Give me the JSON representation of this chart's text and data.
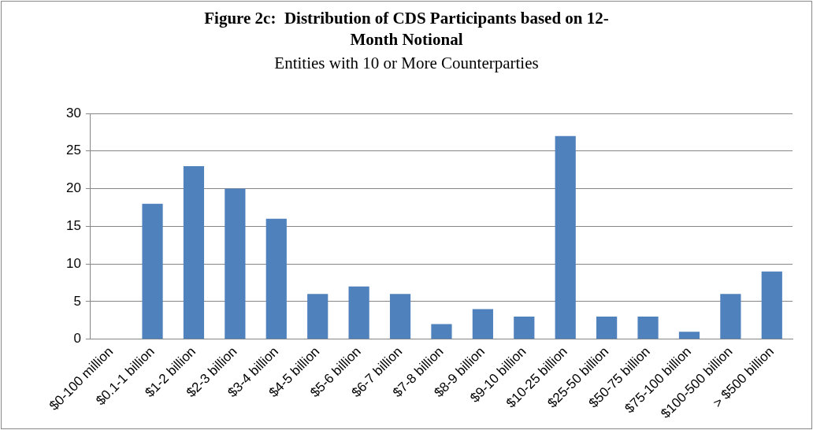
{
  "chart_data": {
    "type": "bar",
    "title": "Figure 2c:  Distribution of CDS Participants based on 12-Month Notional",
    "subtitle": "Entities with 10 or More Counterparties",
    "categories": [
      "$0-100 million",
      "$0.1-1 billion",
      "$1-2 billion",
      "$2-3 billion",
      "$3-4 billion",
      "$4-5 billion",
      "$5-6 billion",
      "$6-7 billion",
      "$7-8 billion",
      "$8-9 billion",
      "$9-10 billion",
      "$10-25 billion",
      "$25-50 billion",
      "$50-75 billion",
      "$75-100 billion",
      "$100-500 billion",
      "> $500 billion"
    ],
    "values": [
      0,
      18,
      23,
      20,
      16,
      6,
      7,
      6,
      2,
      4,
      3,
      27,
      3,
      3,
      1,
      6,
      9
    ],
    "color": "#4f81bd",
    "ylim": [
      0,
      30
    ],
    "yticks": [
      0,
      5,
      10,
      15,
      20,
      25,
      30
    ],
    "grid": "y",
    "legend": false
  }
}
